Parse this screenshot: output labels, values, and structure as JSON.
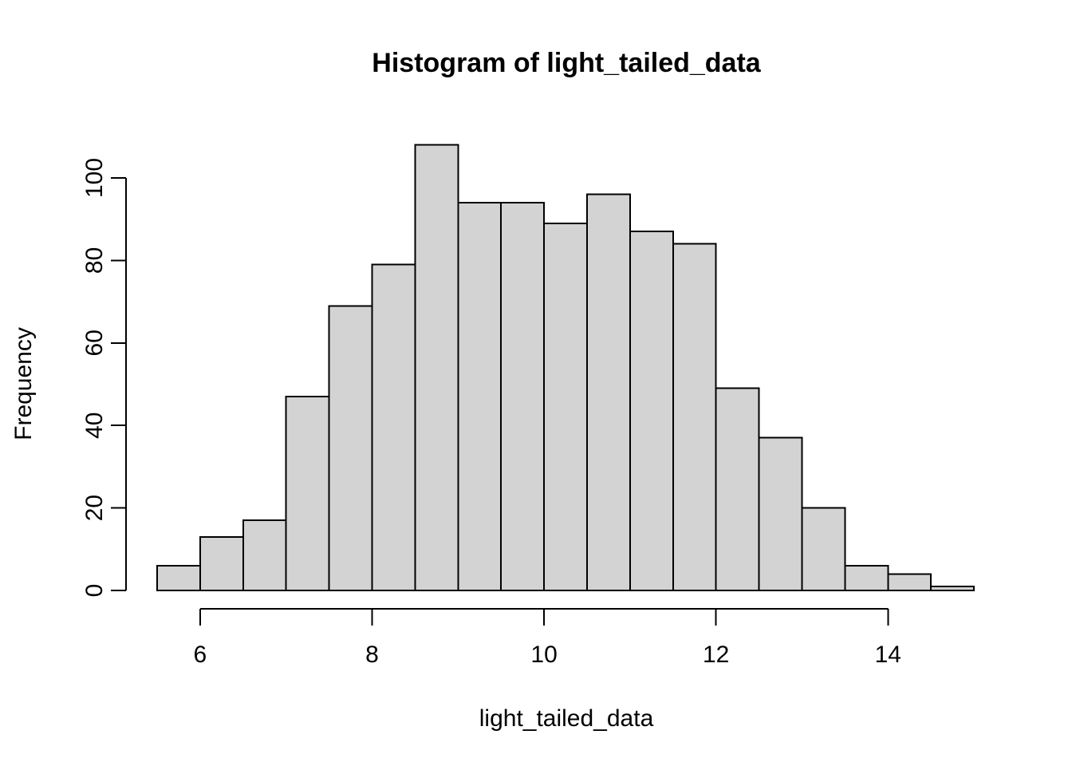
{
  "figure": {
    "background": "#ffffff"
  },
  "chart_data": {
    "type": "bar",
    "subtype": "histogram",
    "title": "Histogram of light_tailed_data",
    "xlabel": "light_tailed_data",
    "ylabel": "Frequency",
    "bin_edges": [
      5.5,
      6.0,
      6.5,
      7.0,
      7.5,
      8.0,
      8.5,
      9.0,
      9.5,
      10.0,
      10.5,
      11.0,
      11.5,
      12.0,
      12.5,
      13.0,
      13.5,
      14.0,
      14.5,
      15.0
    ],
    "counts": [
      6,
      13,
      17,
      47,
      69,
      79,
      108,
      94,
      94,
      89,
      96,
      87,
      84,
      49,
      37,
      20,
      6,
      4,
      1
    ],
    "x_ticks": [
      6,
      8,
      10,
      12,
      14
    ],
    "y_ticks": [
      0,
      20,
      40,
      60,
      80,
      100
    ],
    "xlim": [
      5.5,
      15.0
    ],
    "ylim": [
      0,
      108
    ],
    "grid": false,
    "bar_fill": "#d3d3d3",
    "bar_stroke": "#000000",
    "axis_color": "#000000"
  }
}
